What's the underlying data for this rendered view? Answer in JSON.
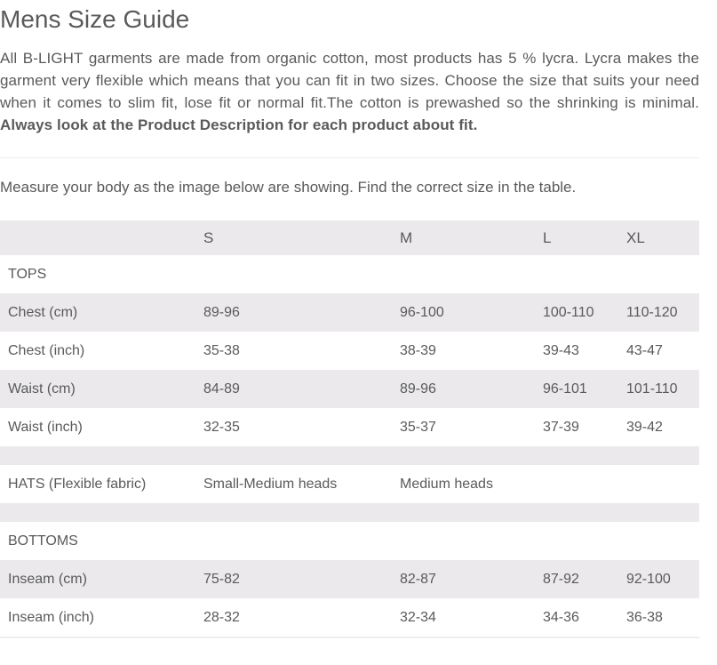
{
  "title": "Mens Size Guide",
  "intro": {
    "text": "All B-LIGHT garments are made from organic cotton, most products has 5 % lycra. Lycra makes the garment very flexible which means that you can fit in two sizes. Choose the size that suits your need when it comes to slim fit, lose fit or normal fit.The cotton is prewashed so the shrinking is minimal. ",
    "bold": "Always look at the Product Description for each product about fit."
  },
  "measure_text": "Measure your body as the image below are showing. Find the correct size in the table.",
  "colors": {
    "text": "#5a5a5a",
    "stripe": "#ebe9ec"
  },
  "table": {
    "headers": [
      "",
      "S",
      "M",
      "L",
      "XL"
    ],
    "rows": [
      {
        "type": "section",
        "cells": [
          "TOPS",
          "",
          "",
          "",
          ""
        ]
      },
      {
        "type": "data",
        "cells": [
          "Chest (cm)",
          "89-96",
          "96-100",
          "100-110",
          "110-120"
        ]
      },
      {
        "type": "data",
        "cells": [
          "Chest (inch)",
          "35-38",
          "38-39",
          "39-43",
          "43-47"
        ]
      },
      {
        "type": "data",
        "cells": [
          "Waist (cm)",
          "84-89",
          "89-96",
          "96-101",
          "101-110"
        ]
      },
      {
        "type": "data",
        "cells": [
          "Waist (inch)",
          "32-35",
          "35-37",
          "37-39",
          "39-42"
        ]
      },
      {
        "type": "empty",
        "cells": [
          "",
          "",
          "",
          "",
          ""
        ]
      },
      {
        "type": "data",
        "cells": [
          "HATS (Flexible fabric)",
          "Small-Medium heads",
          "Medium heads",
          "",
          ""
        ]
      },
      {
        "type": "empty",
        "cells": [
          "",
          "",
          "",
          "",
          ""
        ]
      },
      {
        "type": "section",
        "cells": [
          "BOTTOMS",
          "",
          "",
          "",
          ""
        ]
      },
      {
        "type": "data",
        "cells": [
          "Inseam (cm)",
          "75-82",
          "82-87",
          "87-92",
          "92-100"
        ]
      },
      {
        "type": "data",
        "cells": [
          "Inseam (inch)",
          "28-32",
          "32-34",
          "34-36",
          "36-38"
        ]
      }
    ]
  }
}
